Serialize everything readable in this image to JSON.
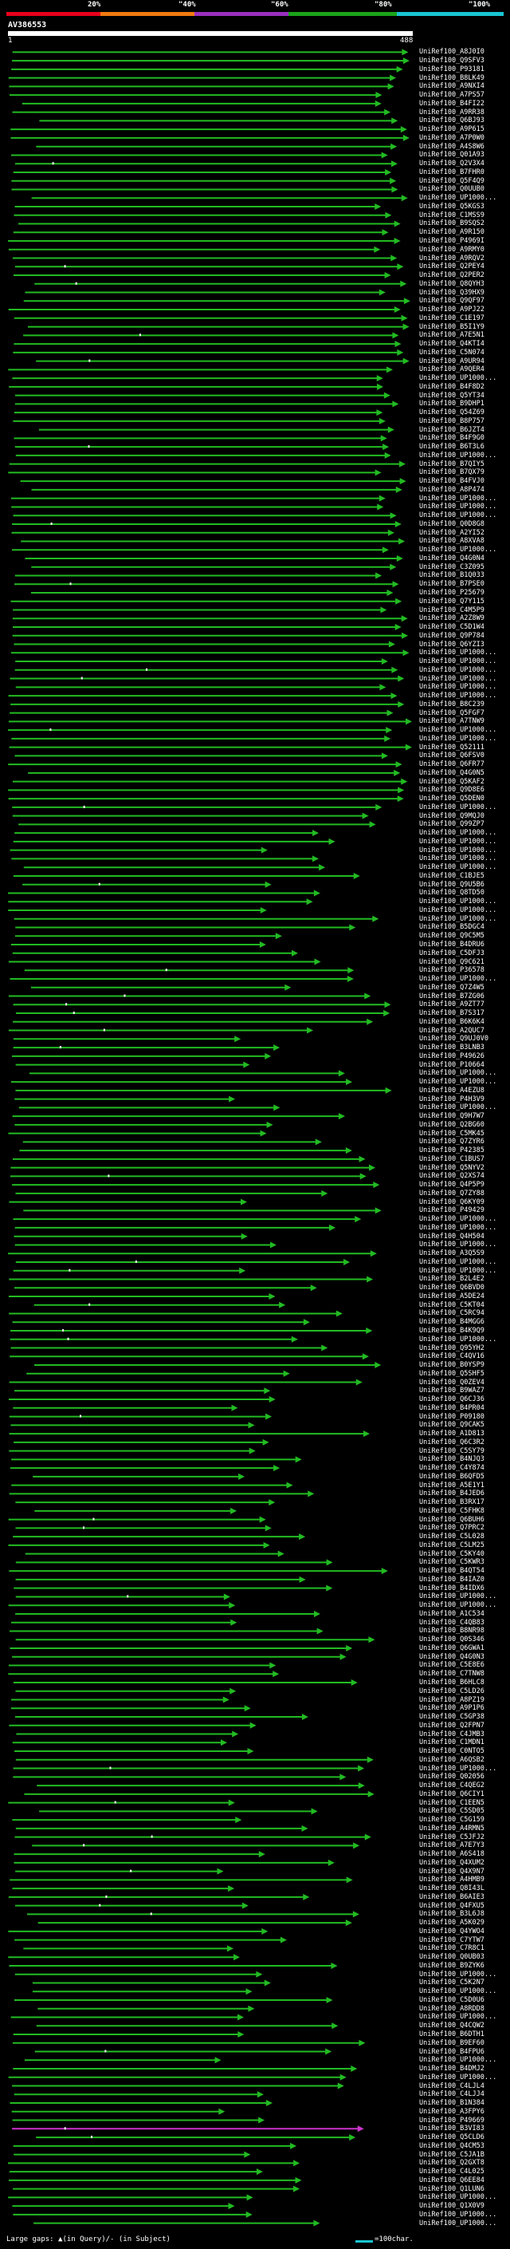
{
  "scale": {
    "ticks": [
      "20%",
      "\"40%",
      "\"60%",
      "\"80%",
      "\"100%"
    ],
    "colors": [
      "#e8001c",
      "#f07a10",
      "#9a2fbf",
      "#1aa41a",
      "#19c5d2"
    ]
  },
  "query": {
    "name": "AV386553",
    "start": "1",
    "end": "488"
  },
  "colors": {
    "hit": "#22bb22",
    "hit_highlight": "#cc33cc",
    "arrow": "#22bb22",
    "gap": "#ffffff"
  },
  "hits": [
    "UniRef100_A8J0I0",
    "UniRef100_Q9SFV3",
    "UniRef100_P93181",
    "UniRef100_B8LK49",
    "UniRef100_A9NXI4",
    "UniRef100_A7PS57",
    "UniRef100_B4FI22",
    "UniRef100_A9RR38",
    "UniRef100_Q6BJ93",
    "UniRef100_A9P615",
    "UniRef100_A7P0W0",
    "UniRef100_A4S8W6",
    "UniRef100_Q01A93",
    "UniRef100_Q2V3X4",
    "UniRef100_B7FHR0",
    "UniRef100_Q5F4Q9",
    "UniRef100_Q0UUB0",
    "UniRef100_UP1000...",
    "UniRef100_Q5KGS3",
    "UniRef100_C1MSS9",
    "UniRef100_B9SQS2",
    "UniRef100_A9R150",
    "UniRef100_P4969I",
    "UniRef100_A9RMY0",
    "UniRef100_A9RQV2",
    "UniRef100_Q2PEY4",
    "UniRef100_Q2PER2",
    "UniRef100_Q8QYH3",
    "UniRef100_Q39HX9",
    "UniRef100_Q9QF97",
    "UniRef100_A9PJ22",
    "UniRef100_C1E197",
    "UniRef100_B5I1Y9",
    "UniRef100_A7E5N1",
    "UniRef100_Q4KTI4",
    "UniRef100_C5N074",
    "UniRef100_A9UR94",
    "UniRef100_A9QER4",
    "UniRef100_UP1000...",
    "UniRef100_B4F8D2",
    "UniRef100_Q5YT34",
    "UniRef100_B9DHP1",
    "UniRef100_Q54Z69",
    "UniRef100_B8P757",
    "UniRef100_B6JZT4",
    "UniRef100_B4F9G0",
    "UniRef100_B6T3L6",
    "UniRef100_UP1000...",
    "UniRef100_B7QIY5",
    "UniRef100_B7QX79",
    "UniRef100_B4FVJ0",
    "UniRef100_A8P474",
    "UniRef100_UP1000...",
    "UniRef100_UP1000...",
    "UniRef100_UP1000...",
    "UniRef100_Q0D8G8",
    "UniRef100_A2YI52",
    "UniRef100_A8XVA8",
    "UniRef100_UP1000...",
    "UniRef100_Q4G0N4",
    "UniRef100_C3Z095",
    "UniRef100_B1Q033",
    "UniRef100_B7PSE0",
    "UniRef100_P25679",
    "UniRef100_Q7Y115",
    "UniRef100_C4M5P9",
    "UniRef100_A2Z8W9",
    "UniRef100_C5D1W4",
    "UniRef100_Q9P784",
    "UniRef100_Q6YZI3",
    "UniRef100_UP1000...",
    "UniRef100_UP1000...",
    "UniRef100_UP1000...",
    "UniRef100_UP1000...",
    "UniRef100_UP1000...",
    "UniRef100_UP1000...",
    "UniRef100_B8C239",
    "UniRef100_Q5FGF7",
    "UniRef100_A7TNW9",
    "UniRef100_UP1000...",
    "UniRef100_UP1000...",
    "UniRef100_Q52111",
    "UniRef100_Q6FSV0",
    "UniRef100_Q6FR77",
    "UniRef100_Q4G0N5",
    "UniRef100_Q5KAF2",
    "UniRef100_Q9D8E6",
    "UniRef100_Q5DEN0",
    "UniRef100_UP1000...",
    "UniRef100_Q9MQJ0",
    "UniRef100_Q99ZP7",
    "UniRef100_UP1000...",
    "UniRef100_UP1000...",
    "UniRef100_UP1000...",
    "UniRef100_UP1000...",
    "UniRef100_UP1000...",
    "UniRef100_C1BJE5",
    "UniRef100_Q9U5B6",
    "UniRef100_Q8TD50",
    "UniRef100_UP1000...",
    "UniRef100_UP1000...",
    "UniRef100_UP1000...",
    "UniRef100_B5DGC4",
    "UniRef100_Q9C5M5",
    "UniRef100_B4DRU6",
    "UniRef100_C5DFJ3",
    "UniRef100_Q9C621",
    "UniRef100_P36578",
    "UniRef100_UP1000...",
    "UniRef100_Q7Z4W5",
    "UniRef100_B7ZG06",
    "UniRef100_A9ZT77",
    "UniRef100_B7S317",
    "UniRef100_B6K6K4",
    "UniRef100_A2QUC7",
    "UniRef100_Q9UJ0V0",
    "UniRef100_B3LNB3",
    "UniRef100_P49626",
    "UniRef100_P10664",
    "UniRef100_UP1000...",
    "UniRef100_UP1000...",
    "UniRef100_A4EZU8",
    "UniRef100_P4H3V9",
    "UniRef100_UP1000...",
    "UniRef100_Q9H7W7",
    "UniRef100_Q2BG60",
    "UniRef100_C5MK45",
    "UniRef100_Q7ZYR6",
    "UniRef100_P42385",
    "UniRef100_C1BUS7",
    "UniRef100_Q5NYV2",
    "UniRef100_Q2XS74",
    "UniRef100_Q4P5P9",
    "UniRef100_Q7ZY88",
    "UniRef100_Q6KY09",
    "UniRef100_P49429",
    "UniRef100_UP1000...",
    "UniRef100_UP1000...",
    "UniRef100_Q4H504",
    "UniRef100_UP1000...",
    "UniRef100_A3Q5S9",
    "UniRef100_UP1000...",
    "UniRef100_UP1000...",
    "UniRef100_B2L4E2",
    "UniRef100_Q6BVD0",
    "UniRef100_A5DE24",
    "UniRef100_C5KT04",
    "UniRef100_C5RC94",
    "UniRef100_B4MGG6",
    "UniRef100_B4K9Q9",
    "UniRef100_UP1000...",
    "UniRef100_Q95YH2",
    "UniRef100_C4QV16",
    "UniRef100_B0YSP9",
    "UniRef100_Q5SHF5",
    "UniRef100_Q0ZEV4",
    "UniRef100_B9WAZ7",
    "UniRef100_Q6CJ36",
    "UniRef100_B4PR04",
    "UniRef100_P09180",
    "UniRef100_Q9CAK5",
    "UniRef100_A1D813",
    "UniRef100_Q6C3R2",
    "UniRef100_C5SY79",
    "UniRef100_B4NJQ3",
    "UniRef100_C4Y874",
    "UniRef100_B6QFD5",
    "UniRef100_A5E1Y1",
    "UniRef100_B4JED6",
    "UniRef100_B3RX17",
    "UniRef100_C5FHK8",
    "UniRef100_Q6BUH6",
    "UniRef100_Q7PRC2",
    "UniRef100_C5L028",
    "UniRef100_C5LM25",
    "UniRef100_C5KY40",
    "UniRef100_C5KWR3",
    "UniRef100_B4QT54",
    "UniRef100_B4IAZ0",
    "UniRef100_B4IDX6",
    "UniRef100_UP1000...",
    "UniRef100_UP1000...",
    "UniRef100_A1C534",
    "UniRef100_C4QB83",
    "UniRef100_B8NR98",
    "UniRef100_Q0S346",
    "UniRef100_Q6GWA1",
    "UniRef100_Q4G0N3",
    "UniRef100_C5E8E6",
    "UniRef100_C7TNW8",
    "UniRef100_B6HLC8",
    "UniRef100_C5LD26",
    "UniRef100_A8PZ19",
    "UniRef100_A9P1P6",
    "UniRef100_C5GP38",
    "UniRef100_Q2FPN7",
    "UniRef100_C4JMB3",
    "UniRef100_C1MDN1",
    "UniRef100_C0NTO5",
    "UniRef100_A6QSB2",
    "UniRef100_UP1000...",
    "UniRef100_Q02056",
    "UniRef100_C4QEG2",
    "UniRef100_Q6CIY1",
    "UniRef100_C1EEN5",
    "UniRef100_C5SD05",
    "UniRef100_C5G159",
    "UniRef100_A4RMN5",
    "UniRef100_C5JFJ2",
    "UniRef100_A7E7Y3",
    "UniRef100_A6S418",
    "UniRef100_Q4XUM2",
    "UniRef100_Q4X9N7",
    "UniRef100_A4HMB9",
    "UniRef100_Q8I43L",
    "UniRef100_B6AIE3",
    "UniRef100_Q4FXU5",
    "UniRef100_B3L6J8",
    "UniRef100_A5K029",
    "UniRef100_Q4YWO4",
    "UniRef100_C7YTW7",
    "UniRef100_C7R8C1",
    "UniRef100_Q0UB03",
    "UniRef100_B9ZYK6",
    "UniRef100_UP1000...",
    "UniRef100_C5K2N7",
    "UniRef100_UP1000...",
    "UniRef100_C5D0U6",
    "UniRef100_A8RDD8",
    "UniRef100_UP1000...",
    "UniRef100_Q4CQW2",
    "UniRef100_B6DTH1",
    "UniRef100_B9EF60",
    "UniRef100_B4FPU6",
    "UniRef100_UP1000...",
    "UniRef100_B4DMJ2",
    "UniRef100_UP1000...",
    "UniRef100_C4LJL4",
    "UniRef100_C4LJJ4",
    "UniRef100_B1N384",
    "UniRef100_A3FPY6",
    "UniRef100_P49669",
    "UniRef100_B3VI83",
    "UniRef100_Q5CLD6",
    "UniRef100_Q4CM53",
    "UniRef100_C5JA1B",
    "UniRef100_Q2GXT8",
    "UniRef100_C4L025",
    "UniRef100_Q6EE84",
    "UniRef100_Q1LUN6",
    "UniRef100_UP1000...",
    "UniRef100_Q1X0V9",
    "UniRef100_UP1000...",
    "UniRef100_UP1000..."
  ],
  "footer": {
    "gap_legend": "Large gaps: ▲(in Query)/- (in Subject)",
    "scale_legend": "=100char."
  }
}
